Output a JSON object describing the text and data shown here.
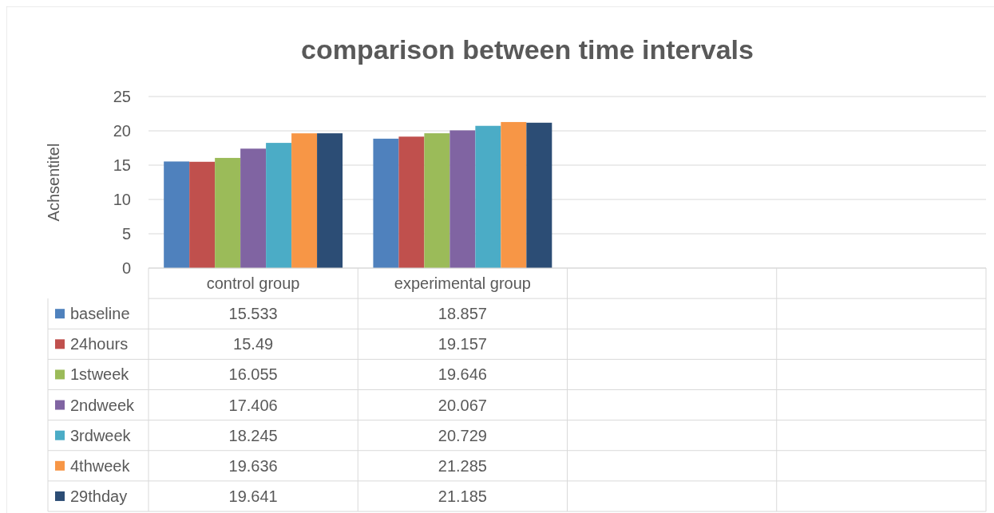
{
  "chart_data": {
    "type": "bar",
    "title": "comparison between time intervals",
    "ylabel": "Achsentitel",
    "categories": [
      "control group",
      "experimental group",
      null,
      null
    ],
    "series": [
      {
        "name": "baseline",
        "color": "#4f81bd",
        "values": [
          15.533,
          18.857,
          null,
          null
        ]
      },
      {
        "name": "24hours",
        "color": "#c0504d",
        "values": [
          15.49,
          19.157,
          null,
          null
        ]
      },
      {
        "name": "1stweek",
        "color": "#9bbb59",
        "values": [
          16.055,
          19.646,
          null,
          null
        ]
      },
      {
        "name": "2ndweek",
        "color": "#8064a2",
        "values": [
          17.406,
          20.067,
          null,
          null
        ]
      },
      {
        "name": "3rdweek",
        "color": "#4bacc6",
        "values": [
          18.245,
          20.729,
          null,
          null
        ]
      },
      {
        "name": "4thweek",
        "color": "#f79646",
        "values": [
          19.636,
          21.285,
          null,
          null
        ]
      },
      {
        "name": "29thday",
        "color": "#2c4d75",
        "values": [
          19.641,
          21.185,
          null,
          null
        ]
      }
    ],
    "ylim": [
      0,
      25
    ],
    "yticks": [
      0,
      5,
      10,
      15,
      20,
      25
    ],
    "grid": "y",
    "legend": "bottom left",
    "data_labels": true
  }
}
